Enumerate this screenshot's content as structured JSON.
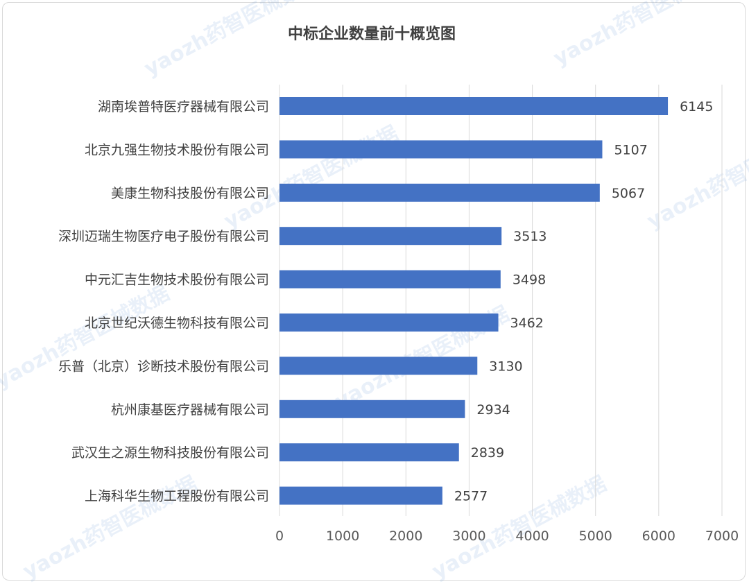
{
  "chart_data": {
    "type": "bar",
    "orientation": "horizontal",
    "title": "中标企业数量前十概览图",
    "categories": [
      "湖南埃普特医疗器械有限公司",
      "北京九强生物技术股份有限公司",
      "美康生物科技股份有限公司",
      "深圳迈瑞生物医疗电子股份有限公司",
      "中元汇吉生物技术股份有限公司",
      "北京世纪沃德生物科技有限公司",
      "乐普（北京）诊断技术股份有限公司",
      "杭州康基医疗器械有限公司",
      "武汉生之源生物科技股份有限公司",
      "上海科华生物工程股份有限公司"
    ],
    "values": [
      6145,
      5107,
      5067,
      3513,
      3498,
      3462,
      3130,
      2934,
      2839,
      2577
    ],
    "xlim": [
      0,
      7000
    ],
    "xticks": [
      "0",
      "1000",
      "2000",
      "3000",
      "4000",
      "5000",
      "6000",
      "7000"
    ],
    "grid": true,
    "legend": "none",
    "bar_color": "#4472c4"
  },
  "watermark": "yaozh药智医械数据"
}
